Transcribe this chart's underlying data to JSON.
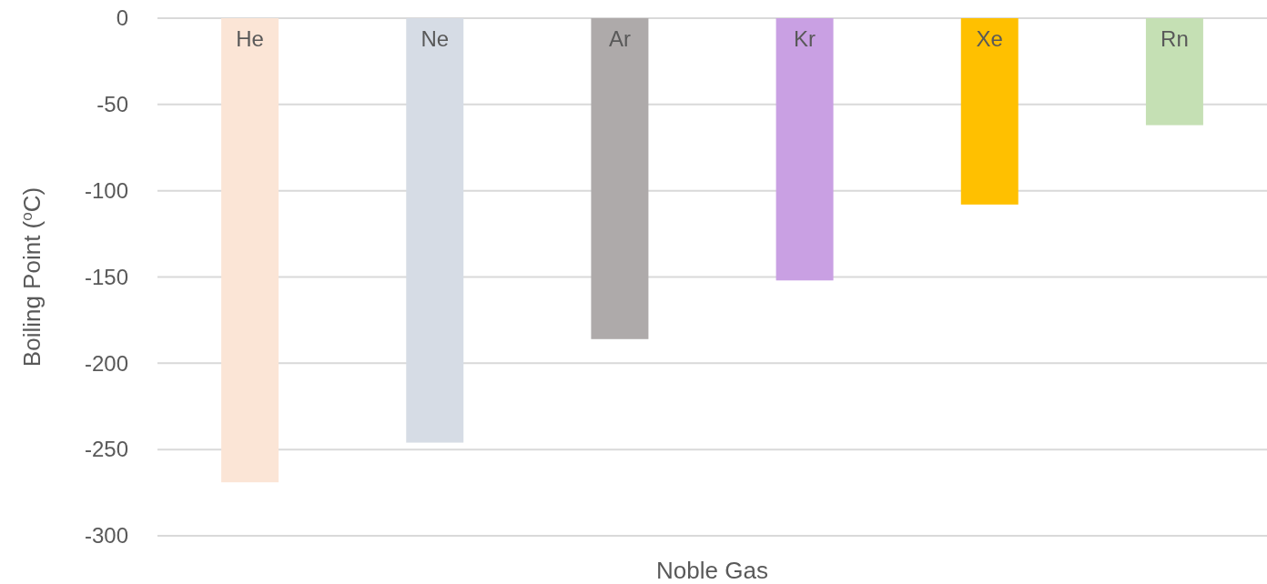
{
  "chart_data": {
    "type": "bar",
    "xlabel": "Noble Gas",
    "ylabel": "Boiling Point ($^{o}$C)",
    "categories": [
      "He",
      "Ne",
      "Ar",
      "Kr",
      "Xe",
      "Rn"
    ],
    "values": [
      -269,
      -246,
      -186,
      -152,
      -108,
      -62
    ],
    "colors": [
      "#fbe5d6",
      "#d6dce5",
      "#aeaaaa",
      "#c9a0e3",
      "#ffc000",
      "#c5e0b4"
    ],
    "ylim": [
      -300,
      0
    ],
    "yticks": [
      -300,
      -250,
      -200,
      -150,
      -100,
      -50,
      0
    ],
    "grid": "y"
  }
}
